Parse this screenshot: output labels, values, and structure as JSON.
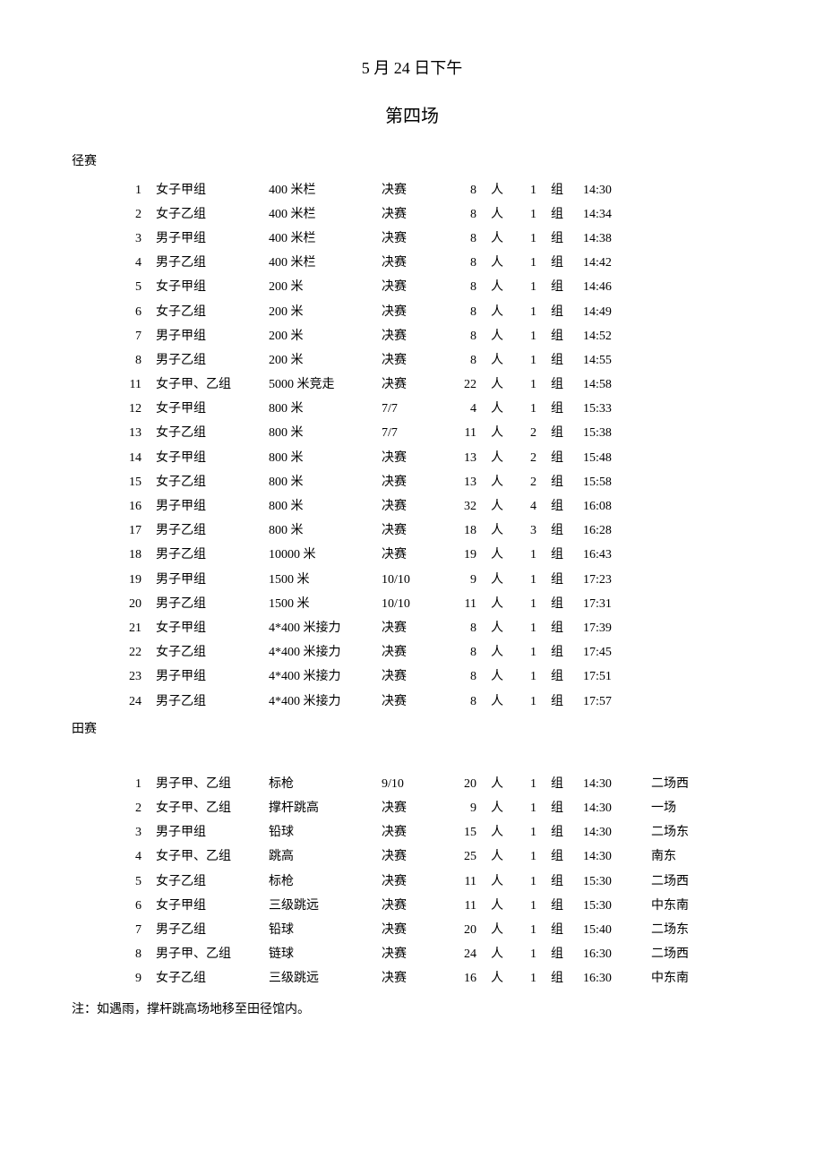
{
  "title_date": "5 月 24 日下午",
  "session": "第四场",
  "track_label": "径赛",
  "field_label": "田赛",
  "ren": "人",
  "zu": "组",
  "note": "注：如遇雨，撑杆跳高场地移至田径馆内。",
  "track": [
    {
      "no": "1",
      "group": "女子甲组",
      "event": "400 米栏",
      "round": "决赛",
      "count": "8",
      "heats": "1",
      "time": "14:30"
    },
    {
      "no": "2",
      "group": "女子乙组",
      "event": "400 米栏",
      "round": "决赛",
      "count": "8",
      "heats": "1",
      "time": "14:34"
    },
    {
      "no": "3",
      "group": "男子甲组",
      "event": "400 米栏",
      "round": "决赛",
      "count": "8",
      "heats": "1",
      "time": "14:38"
    },
    {
      "no": "4",
      "group": "男子乙组",
      "event": "400 米栏",
      "round": "决赛",
      "count": "8",
      "heats": "1",
      "time": "14:42"
    },
    {
      "no": "5",
      "group": "女子甲组",
      "event": "200 米",
      "round": "决赛",
      "count": "8",
      "heats": "1",
      "time": "14:46"
    },
    {
      "no": "6",
      "group": "女子乙组",
      "event": "200 米",
      "round": "决赛",
      "count": "8",
      "heats": "1",
      "time": "14:49"
    },
    {
      "no": "7",
      "group": "男子甲组",
      "event": "200 米",
      "round": "决赛",
      "count": "8",
      "heats": "1",
      "time": "14:52"
    },
    {
      "no": "8",
      "group": "男子乙组",
      "event": "200 米",
      "round": "决赛",
      "count": "8",
      "heats": "1",
      "time": "14:55"
    },
    {
      "no": "11",
      "group": "女子甲、乙组",
      "event": "5000 米竞走",
      "round": "决赛",
      "count": "22",
      "heats": "1",
      "time": "14:58"
    },
    {
      "no": "12",
      "group": "女子甲组",
      "event": "800 米",
      "round": "7/7",
      "count": "4",
      "heats": "1",
      "time": "15:33"
    },
    {
      "no": "13",
      "group": "女子乙组",
      "event": "800 米",
      "round": "7/7",
      "count": "11",
      "heats": "2",
      "time": "15:38"
    },
    {
      "no": "14",
      "group": "女子甲组",
      "event": "800 米",
      "round": "决赛",
      "count": "13",
      "heats": "2",
      "time": "15:48"
    },
    {
      "no": "15",
      "group": "女子乙组",
      "event": "800 米",
      "round": "决赛",
      "count": "13",
      "heats": "2",
      "time": "15:58"
    },
    {
      "no": "16",
      "group": "男子甲组",
      "event": "800 米",
      "round": "决赛",
      "count": "32",
      "heats": "4",
      "time": "16:08"
    },
    {
      "no": "17",
      "group": "男子乙组",
      "event": "800 米",
      "round": "决赛",
      "count": "18",
      "heats": "3",
      "time": "16:28"
    },
    {
      "no": "18",
      "group": "男子乙组",
      "event": "10000 米",
      "round": "决赛",
      "count": "19",
      "heats": "1",
      "time": "16:43"
    },
    {
      "no": "19",
      "group": "男子甲组",
      "event": "1500 米",
      "round": "10/10",
      "count": "9",
      "heats": "1",
      "time": "17:23"
    },
    {
      "no": "20",
      "group": "男子乙组",
      "event": "1500 米",
      "round": "10/10",
      "count": "11",
      "heats": "1",
      "time": "17:31"
    },
    {
      "no": "21",
      "group": "女子甲组",
      "event": "4*400 米接力",
      "round": "决赛",
      "count": "8",
      "heats": "1",
      "time": "17:39"
    },
    {
      "no": "22",
      "group": "女子乙组",
      "event": "4*400 米接力",
      "round": "决赛",
      "count": "8",
      "heats": "1",
      "time": "17:45"
    },
    {
      "no": "23",
      "group": "男子甲组",
      "event": "4*400 米接力",
      "round": "决赛",
      "count": "8",
      "heats": "1",
      "time": "17:51"
    },
    {
      "no": "24",
      "group": "男子乙组",
      "event": "4*400 米接力",
      "round": "决赛",
      "count": "8",
      "heats": "1",
      "time": "17:57"
    }
  ],
  "field": [
    {
      "no": "1",
      "group": "男子甲、乙组",
      "event": "标枪",
      "round": "9/10",
      "count": "20",
      "heats": "1",
      "time": "14:30",
      "loc": "二场西"
    },
    {
      "no": "2",
      "group": "女子甲、乙组",
      "event": "撑杆跳高",
      "round": "决赛",
      "count": "9",
      "heats": "1",
      "time": "14:30",
      "loc": "一场"
    },
    {
      "no": "3",
      "group": "男子甲组",
      "event": "铅球",
      "round": "决赛",
      "count": "15",
      "heats": "1",
      "time": "14:30",
      "loc": "二场东"
    },
    {
      "no": "4",
      "group": "女子甲、乙组",
      "event": "跳高",
      "round": "决赛",
      "count": "25",
      "heats": "1",
      "time": "14:30",
      "loc": "南东"
    },
    {
      "no": "5",
      "group": "女子乙组",
      "event": "标枪",
      "round": "决赛",
      "count": "11",
      "heats": "1",
      "time": "15:30",
      "loc": "二场西"
    },
    {
      "no": "6",
      "group": "女子甲组",
      "event": "三级跳远",
      "round": "决赛",
      "count": "11",
      "heats": "1",
      "time": "15:30",
      "loc": "中东南"
    },
    {
      "no": "7",
      "group": "男子乙组",
      "event": "铅球",
      "round": "决赛",
      "count": "20",
      "heats": "1",
      "time": "15:40",
      "loc": "二场东"
    },
    {
      "no": "8",
      "group": "男子甲、乙组",
      "event": "链球",
      "round": "决赛",
      "count": "24",
      "heats": "1",
      "time": "16:30",
      "loc": "二场西"
    },
    {
      "no": "9",
      "group": "女子乙组",
      "event": "三级跳远",
      "round": "决赛",
      "count": "16",
      "heats": "1",
      "time": "16:30",
      "loc": "中东南"
    }
  ]
}
